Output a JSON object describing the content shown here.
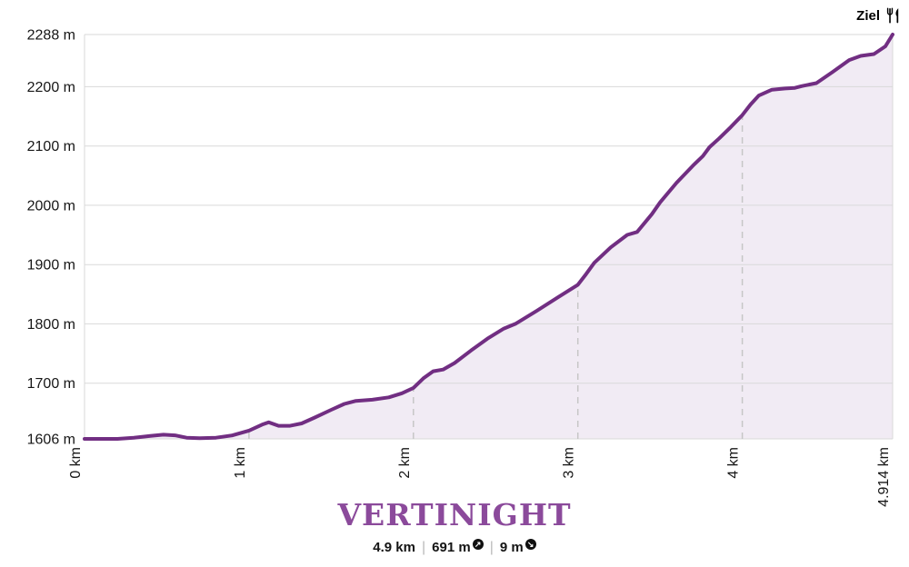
{
  "finish": {
    "label": "Ziel",
    "icon": "fork-knife"
  },
  "stats": {
    "distance": "4.9 km",
    "separator": "|",
    "ascent": "691 m",
    "ascent_icon": "↗",
    "descent": "9 m",
    "descent_icon": "↘"
  },
  "colors": {
    "line": "#712e82",
    "fill": "#f1ebf4",
    "grid": "#d9d9d9",
    "dashed": "#c6c6c6",
    "title": "#8b4a9b",
    "text": "#161616"
  },
  "chart_data": {
    "type": "area",
    "title": "VERTINIGHT",
    "x_unit": "km",
    "y_unit": "m",
    "x_range": [
      0,
      4.914
    ],
    "y_range": [
      1606,
      2288
    ],
    "y_ticks": [
      1606,
      1700,
      1800,
      1900,
      2000,
      2100,
      2200,
      2288
    ],
    "x_ticks": [
      0,
      1,
      2,
      3,
      4,
      4.914
    ],
    "x_tick_labels": [
      "0 km",
      "1 km",
      "2 km",
      "3 km",
      "4 km",
      "4.914 km"
    ],
    "dashed_km_lines": [
      1,
      2,
      3,
      4
    ],
    "grid": true,
    "legend": false,
    "profile": [
      [
        0.0,
        1606
      ],
      [
        0.1,
        1606
      ],
      [
        0.2,
        1606
      ],
      [
        0.3,
        1608
      ],
      [
        0.4,
        1611
      ],
      [
        0.48,
        1613
      ],
      [
        0.55,
        1612
      ],
      [
        0.62,
        1608
      ],
      [
        0.7,
        1607
      ],
      [
        0.8,
        1608
      ],
      [
        0.9,
        1612
      ],
      [
        1.0,
        1620
      ],
      [
        1.08,
        1630
      ],
      [
        1.12,
        1634
      ],
      [
        1.18,
        1628
      ],
      [
        1.25,
        1628
      ],
      [
        1.32,
        1632
      ],
      [
        1.4,
        1642
      ],
      [
        1.5,
        1655
      ],
      [
        1.58,
        1665
      ],
      [
        1.65,
        1670
      ],
      [
        1.75,
        1672
      ],
      [
        1.85,
        1676
      ],
      [
        1.93,
        1683
      ],
      [
        2.0,
        1692
      ],
      [
        2.06,
        1708
      ],
      [
        2.12,
        1720
      ],
      [
        2.18,
        1723
      ],
      [
        2.25,
        1734
      ],
      [
        2.35,
        1755
      ],
      [
        2.45,
        1775
      ],
      [
        2.55,
        1792
      ],
      [
        2.62,
        1800
      ],
      [
        2.75,
        1822
      ],
      [
        2.88,
        1845
      ],
      [
        3.0,
        1866
      ],
      [
        3.05,
        1884
      ],
      [
        3.1,
        1903
      ],
      [
        3.2,
        1929
      ],
      [
        3.3,
        1950
      ],
      [
        3.36,
        1955
      ],
      [
        3.45,
        1985
      ],
      [
        3.5,
        2005
      ],
      [
        3.6,
        2038
      ],
      [
        3.7,
        2067
      ],
      [
        3.76,
        2083
      ],
      [
        3.8,
        2098
      ],
      [
        3.86,
        2113
      ],
      [
        3.93,
        2132
      ],
      [
        4.0,
        2152
      ],
      [
        4.05,
        2170
      ],
      [
        4.1,
        2185
      ],
      [
        4.18,
        2195
      ],
      [
        4.26,
        2197
      ],
      [
        4.32,
        2198
      ],
      [
        4.36,
        2201
      ],
      [
        4.45,
        2206
      ],
      [
        4.55,
        2225
      ],
      [
        4.65,
        2245
      ],
      [
        4.72,
        2252
      ],
      [
        4.8,
        2255
      ],
      [
        4.87,
        2268
      ],
      [
        4.914,
        2288
      ]
    ]
  }
}
